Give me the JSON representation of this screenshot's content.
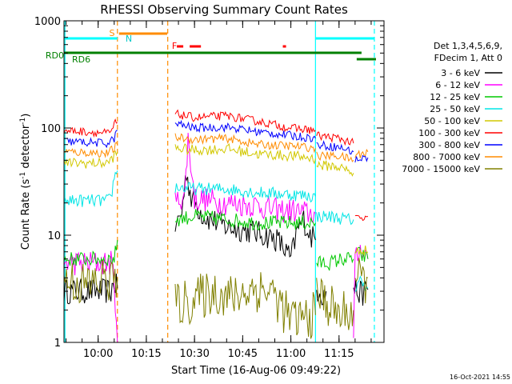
{
  "chart_data": {
    "type": "line",
    "title": "RHESSI Observing Summary Count Rates",
    "xlabel": "Start Time (16-Aug-06 09:49:22)",
    "ylabel": "Count Rate (s⁻¹ detector⁻¹)",
    "ylabel_main": "Count Rate (s",
    "ylabel_sup1": "-1",
    "ylabel_mid": " detector",
    "ylabel_sup2": "-1",
    "ylabel_end": ")",
    "y_scale": "log",
    "ylim": [
      1,
      1000
    ],
    "xlim": [
      "09:49:22",
      "11:29:00"
    ],
    "x_ticks": [
      "10:00",
      "10:15",
      "10:30",
      "10:45",
      "11:00",
      "11:15"
    ],
    "y_ticks": [
      "1",
      "10",
      "100",
      "1000"
    ],
    "legend_title_1": "Det 1,3,4,5,6,9,",
    "legend_title_2": "FDecim 1, Att 0",
    "timestamp": "16-Oct-2021 14:55",
    "flags": {
      "S": "S",
      "N": "N",
      "F": "F",
      "RD0": "RD0",
      "RD6": "RD6",
      "S_color": "#ff8c00",
      "N_color": "#00ffff",
      "F_color": "#ff0000",
      "RD_color": "#008000"
    },
    "gaps": [
      [
        "10:06:30",
        "10:22:00"
      ],
      [
        "11:08:00",
        "11:19:30"
      ]
    ],
    "vlines": [
      {
        "t": "09:49:40",
        "color": "#00ffff",
        "style": "solid"
      },
      {
        "t": "10:06:00",
        "color": "#ff8c00",
        "style": "dashed"
      },
      {
        "t": "10:21:40",
        "color": "#ff8c00",
        "style": "dashed"
      },
      {
        "t": "11:07:40",
        "color": "#00ffff",
        "style": "solid"
      },
      {
        "t": "11:26:00",
        "color": "#00ffff",
        "style": "dashed"
      }
    ],
    "series": [
      {
        "name": "3 - 6 keV",
        "color": "#000000",
        "segments": [
          {
            "t": [
              "09:49:22",
              "10:04:00",
              "10:05:00",
              "10:06:00"
            ],
            "v": [
              3.0,
              3.0,
              3.6,
              3.2
            ]
          },
          {
            "t": [
              "10:24:00",
              "10:26:00",
              "10:27:30",
              "10:29:00",
              "10:33:00",
              "10:40:00",
              "10:47:00",
              "10:52:00",
              "10:56:00",
              "11:00:00",
              "11:02:00",
              "11:04:00",
              "11:06:00",
              "11:07:40"
            ],
            "v": [
              12,
              16,
              40,
              22,
              15,
              12,
              11,
              10,
              9,
              6,
              11,
              14,
              10,
              9
            ]
          },
          {
            "t": [
              "11:08:00",
              "11:09:00",
              "11:10:00",
              "11:11:00"
            ],
            "v": [
              3.0,
              3.2,
              2.6,
              3.0
            ]
          },
          {
            "t": [
              "11:19:30",
              "11:22:00",
              "11:24:00"
            ],
            "v": [
              3.2,
              2.8,
              3.1
            ]
          }
        ]
      },
      {
        "name": "6 - 12 keV",
        "color": "#ff00ff",
        "segments": [
          {
            "t": [
              "09:49:22",
              "10:04:00",
              "10:05:00",
              "10:06:00"
            ],
            "v": [
              5.5,
              5.5,
              4.0,
              1.0
            ]
          },
          {
            "t": [
              "10:24:00",
              "10:27:00",
              "10:28:00",
              "10:30:00",
              "10:40:00",
              "10:50:00",
              "10:55:00",
              "11:00:00",
              "11:05:00",
              "11:07:40"
            ],
            "v": [
              20,
              24,
              80,
              22,
              20,
              19,
              17,
              17,
              16,
              16
            ]
          },
          {
            "t": [
              "11:19:30",
              "11:20:00",
              "11:22:00",
              "11:24:00"
            ],
            "v": [
              1.0,
              5.5,
              8.0,
              6.0
            ]
          }
        ]
      },
      {
        "name": "12 - 25 keV",
        "color": "#00c800",
        "segments": [
          {
            "t": [
              "09:49:22",
              "10:04:00",
              "10:05:00",
              "10:06:00"
            ],
            "v": [
              6.0,
              6.0,
              6.0,
              9.0
            ]
          },
          {
            "t": [
              "10:24:00",
              "10:30:00",
              "10:40:00",
              "10:50:00",
              "11:00:00",
              "11:07:40"
            ],
            "v": [
              14,
              15,
              14,
              13,
              13,
              13
            ]
          },
          {
            "t": [
              "11:08:00",
              "11:12:00",
              "11:16:00",
              "11:19:30"
            ],
            "v": [
              5.5,
              5.5,
              6.0,
              6.0
            ]
          },
          {
            "t": [
              "11:20:00",
              "11:24:00"
            ],
            "v": [
              7.0,
              6.0
            ]
          }
        ]
      },
      {
        "name": "25 - 50 keV",
        "color": "#00e5e5",
        "segments": [
          {
            "t": [
              "09:49:22",
              "10:03:00",
              "10:04:00",
              "10:05:00",
              "10:06:00"
            ],
            "v": [
              21,
              21,
              22,
              35,
              40
            ]
          },
          {
            "t": [
              "10:24:00",
              "10:30:00",
              "10:40:00",
              "10:50:00",
              "11:00:00",
              "11:07:40"
            ],
            "v": [
              28,
              27,
              27,
              25,
              24,
              23
            ]
          },
          {
            "t": [
              "11:08:00",
              "11:12:00",
              "11:18:00",
              "11:19:30"
            ],
            "v": [
              15,
              15,
              14,
              14
            ]
          },
          {
            "t": [
              "11:20:00",
              "11:22:00",
              "11:24:00"
            ],
            "v": [
              3.0,
              4.0,
              3.2
            ]
          }
        ]
      },
      {
        "name": "50 - 100 keV",
        "color": "#d2c800",
        "segments": [
          {
            "t": [
              "09:49:22",
              "10:03:00",
              "10:05:00",
              "10:06:00"
            ],
            "v": [
              47,
              47,
              55,
              60
            ]
          },
          {
            "t": [
              "10:24:00",
              "10:30:00",
              "10:40:00",
              "10:50:00",
              "11:00:00",
              "11:07:40"
            ],
            "v": [
              65,
              62,
              64,
              57,
              55,
              52
            ]
          },
          {
            "t": [
              "11:08:00",
              "11:14:00",
              "11:18:00",
              "11:19:30"
            ],
            "v": [
              45,
              44,
              40,
              38
            ]
          },
          {
            "t": [
              "11:20:00",
              "11:22:00",
              "11:24:00"
            ],
            "v": [
              6.5,
              7.5,
              7.0
            ]
          }
        ]
      },
      {
        "name": "100 - 300 keV",
        "color": "#ff0000",
        "segments": [
          {
            "t": [
              "09:49:22",
              "10:02:00",
              "10:04:00",
              "10:05:00",
              "10:06:00"
            ],
            "v": [
              95,
              90,
              88,
              110,
              112
            ]
          },
          {
            "t": [
              "10:24:00",
              "10:30:00",
              "10:40:00",
              "10:50:00",
              "11:00:00",
              "11:07:40"
            ],
            "v": [
              135,
              125,
              130,
              115,
              100,
              95
            ]
          },
          {
            "t": [
              "11:08:00",
              "11:15:00",
              "11:19:30"
            ],
            "v": [
              85,
              80,
              72
            ]
          },
          {
            "t": [
              "11:20:00",
              "11:22:00",
              "11:24:00"
            ],
            "v": [
              15,
              14,
              15
            ]
          }
        ]
      },
      {
        "name": "300 - 800 keV",
        "color": "#0000ff",
        "segments": [
          {
            "t": [
              "09:49:22",
              "10:03:00",
              "10:05:00",
              "10:06:00"
            ],
            "v": [
              75,
              72,
              80,
              95
            ]
          },
          {
            "t": [
              "10:24:00",
              "10:30:00",
              "10:40:00",
              "10:50:00",
              "11:00:00",
              "11:07:40"
            ],
            "v": [
              110,
              100,
              102,
              92,
              85,
              80
            ]
          },
          {
            "t": [
              "11:08:00",
              "11:15:00",
              "11:19:30"
            ],
            "v": [
              70,
              66,
              60
            ]
          },
          {
            "t": [
              "11:20:00",
              "11:22:00",
              "11:24:00"
            ],
            "v": [
              50,
              52,
              53
            ]
          }
        ]
      },
      {
        "name": "800 - 7000 keV",
        "color": "#ff8c00",
        "segments": [
          {
            "t": [
              "09:49:22",
              "10:03:00",
              "10:05:00",
              "10:06:00"
            ],
            "v": [
              60,
              58,
              65,
              70
            ]
          },
          {
            "t": [
              "10:24:00",
              "10:30:00",
              "10:40:00",
              "10:50:00",
              "11:00:00",
              "11:07:40"
            ],
            "v": [
              82,
              78,
              80,
              70,
              68,
              65
            ]
          },
          {
            "t": [
              "11:08:00",
              "11:15:00",
              "11:19:30"
            ],
            "v": [
              55,
              55,
              50
            ]
          },
          {
            "t": [
              "11:20:00",
              "11:22:00",
              "11:24:00"
            ],
            "v": [
              55,
              58,
              60
            ]
          }
        ]
      },
      {
        "name": "7000 - 15000 keV",
        "color": "#808000",
        "segments": [
          {
            "t": [
              "09:49:22",
              "09:56:00",
              "10:01:00",
              "10:06:00"
            ],
            "v": [
              4.0,
              3.4,
              3.8,
              4.0
            ]
          },
          {
            "t": [
              "10:24:00",
              "10:30:00",
              "10:36:00",
              "10:42:00",
              "10:48:00",
              "10:54:00",
              "11:00:00",
              "11:07:40"
            ],
            "v": [
              2.2,
              2.5,
              3.0,
              2.6,
              3.2,
              3.0,
              1.6,
              1.8
            ]
          },
          {
            "t": [
              "11:08:00",
              "11:12:00",
              "11:15:00",
              "11:19:30"
            ],
            "v": [
              3.0,
              2.2,
              1.8,
              2.0
            ]
          },
          {
            "t": [
              "11:20:00",
              "11:22:00",
              "11:24:00"
            ],
            "v": [
              4.0,
              3.6,
              4.0
            ]
          }
        ]
      }
    ]
  }
}
